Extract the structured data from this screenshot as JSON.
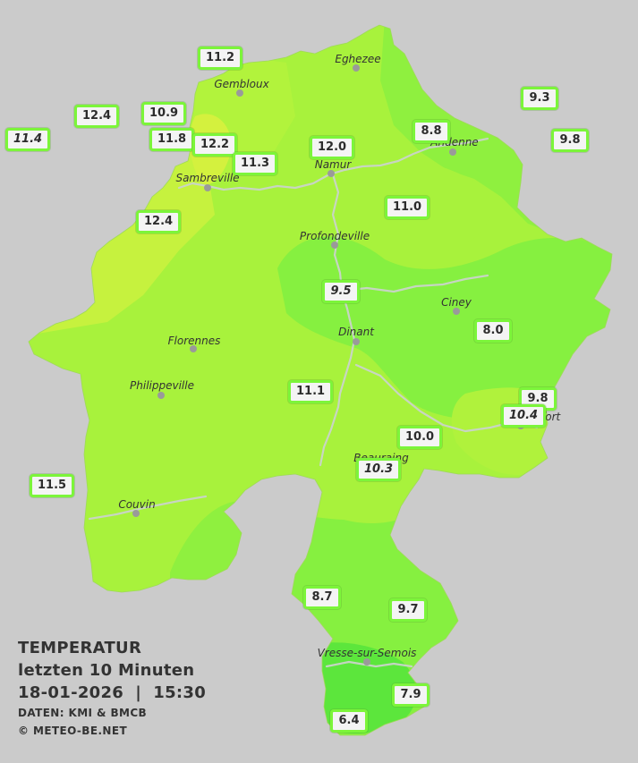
{
  "colors": {
    "background": "#cbcbcb",
    "zone_warm": "#c6f23e",
    "zone_mid": "#a8f23c",
    "zone_cool": "#86f040",
    "zone_cold": "#5ce63c",
    "station_border": "#7cf53a"
  },
  "cities": [
    {
      "name": "Eghezee"
    },
    {
      "name": "Gembloux"
    },
    {
      "name": "Andenne"
    },
    {
      "name": "Namur"
    },
    {
      "name": "Sambreville"
    },
    {
      "name": "Profondeville"
    },
    {
      "name": "Ciney"
    },
    {
      "name": "Dinant"
    },
    {
      "name": "Florennes"
    },
    {
      "name": "Philippeville"
    },
    {
      "name": "Rochefort"
    },
    {
      "name": "Beauraing"
    },
    {
      "name": "Couvin"
    },
    {
      "name": "Vresse-sur-Semois"
    }
  ],
  "stations": [
    {
      "value": "11.2",
      "italic": false
    },
    {
      "value": "9.3",
      "italic": false
    },
    {
      "value": "12.4",
      "italic": false
    },
    {
      "value": "10.9",
      "italic": false
    },
    {
      "value": "11.4",
      "italic": true
    },
    {
      "value": "11.8",
      "italic": false
    },
    {
      "value": "12.2",
      "italic": false
    },
    {
      "value": "8.8",
      "italic": false
    },
    {
      "value": "9.8",
      "italic": false
    },
    {
      "value": "12.0",
      "italic": false
    },
    {
      "value": "11.3",
      "italic": false
    },
    {
      "value": "11.0",
      "italic": false
    },
    {
      "value": "12.4",
      "italic": false
    },
    {
      "value": "9.5",
      "italic": true
    },
    {
      "value": "8.0",
      "italic": false
    },
    {
      "value": "11.1",
      "italic": false
    },
    {
      "value": "9.8",
      "italic": false
    },
    {
      "value": "10.4",
      "italic": true
    },
    {
      "value": "10.0",
      "italic": false
    },
    {
      "value": "10.3",
      "italic": true
    },
    {
      "value": "11.5",
      "italic": false
    },
    {
      "value": "8.7",
      "italic": false
    },
    {
      "value": "9.7",
      "italic": false
    },
    {
      "value": "7.9",
      "italic": false
    },
    {
      "value": "6.4",
      "italic": false
    }
  ],
  "legend": {
    "title": "TEMPERATUR",
    "subtitle": "letzten 10 Minuten",
    "datetime": "18-01-2026  |  15:30",
    "source": "DATEN: KMI & BMCB",
    "copyright": "© METEO-BE.NET"
  }
}
